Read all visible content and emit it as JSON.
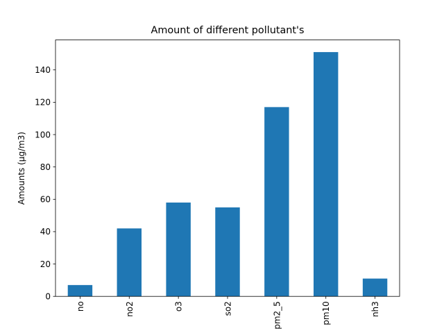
{
  "chart_data": {
    "type": "bar",
    "title": "Amount of different pollutant's",
    "xlabel": "",
    "ylabel": "Amounts (µg/m3)",
    "categories": [
      "no",
      "no2",
      "o3",
      "so2",
      "pm2_5",
      "pm10",
      "nh3"
    ],
    "values": [
      7,
      42,
      58,
      55,
      117,
      151,
      11
    ],
    "ylim": [
      0,
      158.5
    ],
    "yticks": [
      0,
      20,
      40,
      60,
      80,
      100,
      120,
      140
    ],
    "grid": false,
    "bar_color": "#1f77b4"
  }
}
